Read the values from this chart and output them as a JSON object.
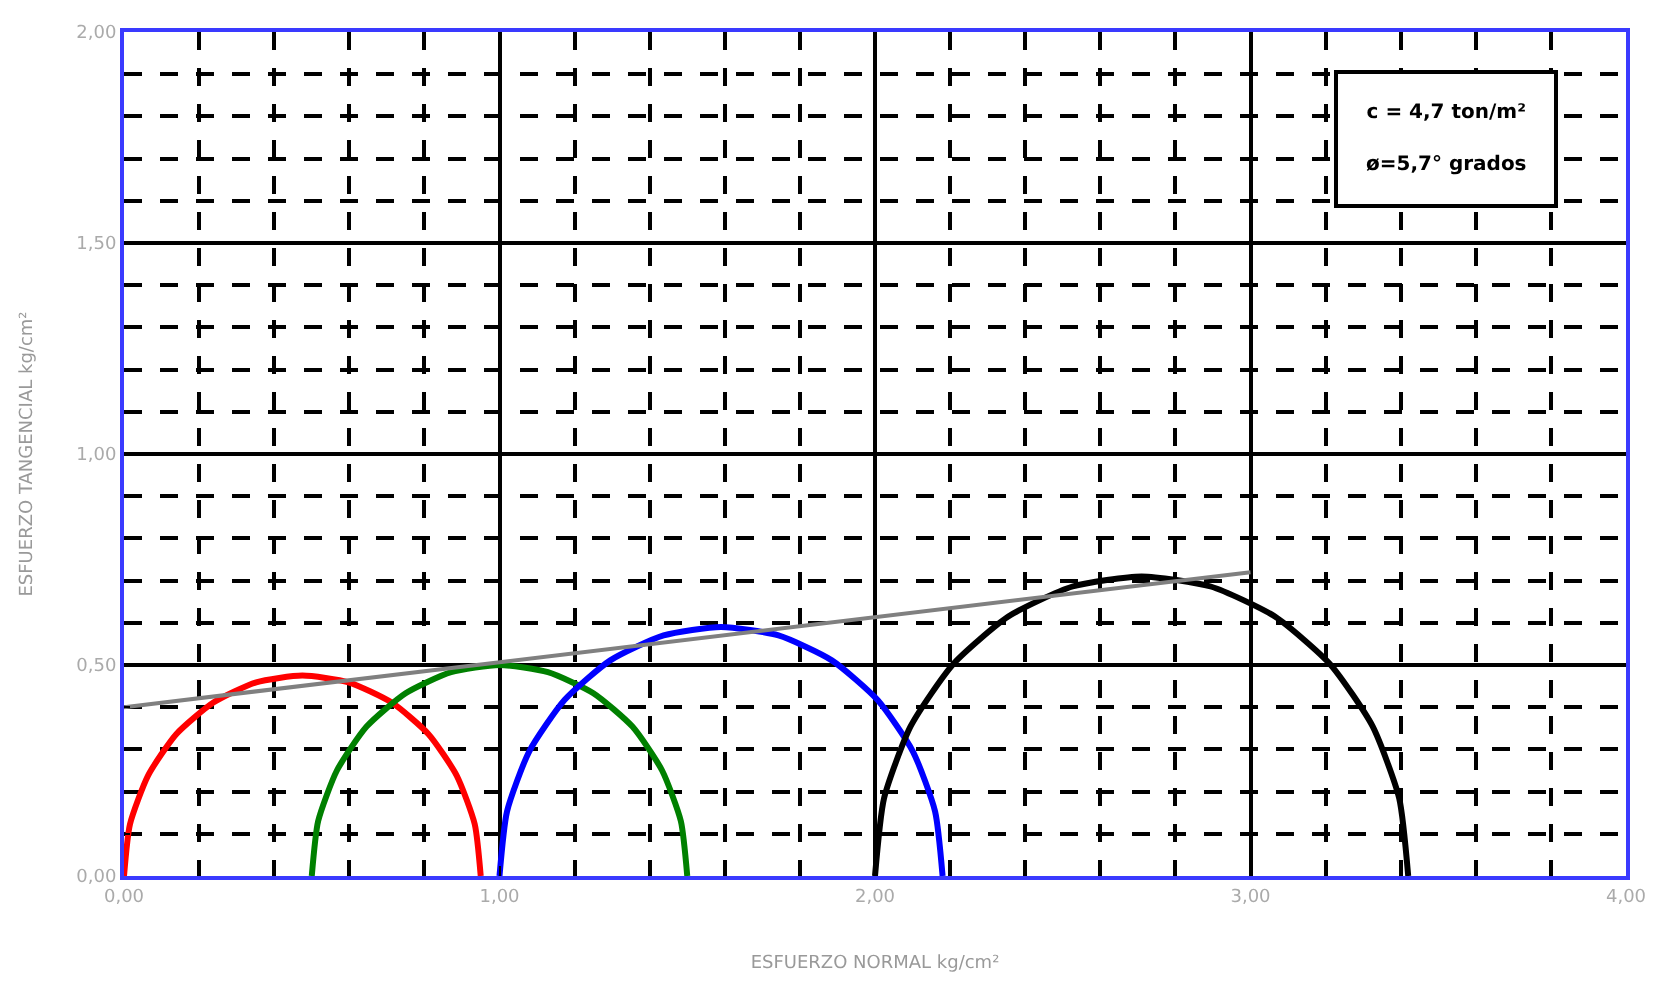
{
  "chart_data": {
    "type": "line",
    "xlabel": "ESFUERZO NORMAL kg/cm²",
    "ylabel": "ESFUERZO TANGENCIAL kg/cm²",
    "annotations": [
      "c = 4,7 ton/m²\nø=5,7° grados"
    ],
    "series": [
      {
        "color": "#ff0000",
        "x": [
          0,
          0.016,
          0.064,
          0.139,
          0.238,
          0.352,
          0.475,
          0.598,
          0.713,
          0.811,
          0.886,
          0.934,
          0.95
        ],
        "values": [
          0,
          0.123,
          0.238,
          0.336,
          0.411,
          0.459,
          0.475,
          0.459,
          0.411,
          0.336,
          0.238,
          0.123,
          0
        ]
      },
      {
        "color": "#008000",
        "x": [
          0.5,
          0.517,
          0.567,
          0.646,
          0.75,
          0.871,
          1.0,
          1.129,
          1.25,
          1.354,
          1.433,
          1.483,
          1.5
        ],
        "values": [
          0,
          0.13,
          0.25,
          0.354,
          0.433,
          0.483,
          0.5,
          0.483,
          0.433,
          0.354,
          0.25,
          0.13,
          0
        ]
      },
      {
        "color": "#0000ff",
        "x": [
          1.0,
          1.02,
          1.079,
          1.173,
          1.295,
          1.437,
          1.59,
          1.743,
          1.885,
          2.007,
          2.101,
          2.16,
          2.18
        ],
        "values": [
          0,
          0.153,
          0.295,
          0.417,
          0.511,
          0.57,
          0.59,
          0.57,
          0.511,
          0.417,
          0.295,
          0.153,
          0
        ]
      },
      {
        "color": "#000000",
        "x": [
          2.0,
          2.024,
          2.095,
          2.208,
          2.355,
          2.526,
          2.71,
          2.894,
          3.065,
          3.212,
          3.325,
          3.396,
          3.42
        ],
        "values": [
          0,
          0.184,
          0.355,
          0.502,
          0.615,
          0.686,
          0.71,
          0.686,
          0.615,
          0.502,
          0.355,
          0.184,
          0
        ]
      },
      {
        "color": "#808080",
        "x": [
          0,
          3
        ],
        "values": [
          0.4,
          0.72
        ]
      }
    ],
    "xlim": [
      0,
      4
    ],
    "ylim": [
      0,
      2
    ],
    "xticks": [
      {
        "value": 0,
        "label": "0,00"
      },
      {
        "value": 1,
        "label": "1,00"
      },
      {
        "value": 2,
        "label": "2,00"
      },
      {
        "value": 3,
        "label": "3,00"
      },
      {
        "value": 4,
        "label": "4,00"
      }
    ],
    "yticks": [
      {
        "value": 0,
        "label": "0,00"
      },
      {
        "value": 0.5,
        "label": "0,50"
      },
      {
        "value": 1,
        "label": "1,00"
      },
      {
        "value": 1.5,
        "label": "1,50"
      },
      {
        "value": 2,
        "label": "2,00"
      }
    ],
    "grid": true,
    "marker": "none",
    "line_style": "solid"
  }
}
